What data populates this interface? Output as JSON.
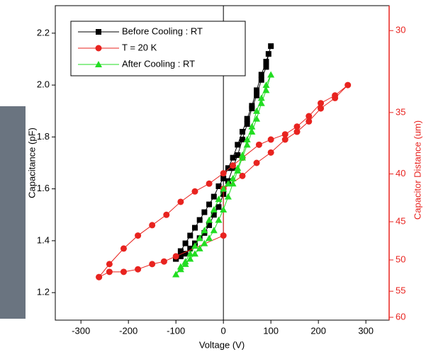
{
  "chart_data": {
    "type": "scatter-line",
    "x_label": "Voltage (V)",
    "y_label": "Capacitance (pF)",
    "y2_label": "Capacitor Distance (um)",
    "xlim": [
      -354,
      349
    ],
    "xticks": [
      -300,
      -200,
      -100,
      0,
      100,
      200,
      300
    ],
    "ylim": [
      1.094,
      2.306
    ],
    "yticks": [
      1.2,
      1.4,
      1.6,
      1.8,
      {
        "value": 2,
        "label": "2.0"
      },
      2.2
    ],
    "y2lim": [
      60.6,
      28.75
    ],
    "y2scale": "reciprocal",
    "y2ticks": [
      30,
      35,
      40,
      45,
      50,
      55,
      60
    ],
    "y2color": "#e8231f",
    "legend": "top-left",
    "series": [
      {
        "name": "Before Cooling : RT",
        "color": "#000000",
        "marker": "square",
        "x": [
          -100,
          -90,
          -80,
          -70,
          -60,
          -50,
          -40,
          -30,
          -20,
          -10,
          0,
          10,
          20,
          30,
          40,
          50,
          60,
          70,
          80,
          90,
          100,
          95,
          90,
          80,
          70,
          60,
          50,
          40,
          30,
          20,
          10,
          0,
          -10,
          -20,
          -30,
          -40,
          -50,
          -60,
          -70,
          -80,
          -90,
          -100
        ],
        "values": [
          1.33,
          1.36,
          1.39,
          1.42,
          1.45,
          1.48,
          1.51,
          1.54,
          1.57,
          1.61,
          1.64,
          1.68,
          1.72,
          1.77,
          1.82,
          1.87,
          1.92,
          1.98,
          2.04,
          2.09,
          2.15,
          2.12,
          2.07,
          2.02,
          1.96,
          1.91,
          1.85,
          1.79,
          1.73,
          1.68,
          1.63,
          1.58,
          1.53,
          1.5,
          1.46,
          1.43,
          1.41,
          1.39,
          1.37,
          1.35,
          1.34,
          1.33
        ]
      },
      {
        "name": "T = 20 K",
        "color": "#e8231f",
        "marker": "circle",
        "x": [
          -262,
          -240,
          -210,
          -180,
          -150,
          -125,
          -100,
          0,
          0,
          40,
          70,
          100,
          130,
          155,
          180,
          205,
          235,
          262,
          235,
          205,
          180,
          155,
          130,
          100,
          75,
          40,
          20,
          0,
          -30,
          -60,
          -90,
          -120,
          -150,
          -180,
          -210,
          -240,
          -262
        ],
        "values": [
          1.26,
          1.28,
          1.28,
          1.29,
          1.31,
          1.32,
          1.34,
          1.42,
          1.6,
          1.65,
          1.7,
          1.74,
          1.79,
          1.82,
          1.86,
          1.91,
          1.95,
          2.0,
          1.96,
          1.93,
          1.88,
          1.84,
          1.81,
          1.79,
          1.77,
          1.72,
          1.69,
          1.66,
          1.62,
          1.59,
          1.55,
          1.5,
          1.46,
          1.42,
          1.37,
          1.31,
          1.26
        ]
      },
      {
        "name": "After Cooling : RT",
        "color": "#22dd22",
        "marker": "triangle",
        "x": [
          -100,
          -90,
          -80,
          -70,
          -60,
          -50,
          -40,
          -30,
          -20,
          -10,
          0,
          10,
          20,
          30,
          40,
          50,
          60,
          70,
          80,
          90,
          100,
          90,
          80,
          70,
          60,
          50,
          40,
          30,
          20,
          10,
          0,
          -10,
          -20,
          -30,
          -40,
          -50,
          -60,
          -70,
          -80,
          -90,
          -100
        ],
        "values": [
          1.27,
          1.29,
          1.31,
          1.33,
          1.35,
          1.37,
          1.39,
          1.41,
          1.44,
          1.48,
          1.52,
          1.57,
          1.62,
          1.67,
          1.72,
          1.77,
          1.82,
          1.87,
          1.93,
          1.98,
          2.04,
          2.0,
          1.95,
          1.9,
          1.84,
          1.79,
          1.73,
          1.68,
          1.64,
          1.62,
          1.6,
          1.56,
          1.52,
          1.48,
          1.44,
          1.41,
          1.38,
          1.35,
          1.32,
          1.3,
          1.27
        ]
      }
    ]
  }
}
